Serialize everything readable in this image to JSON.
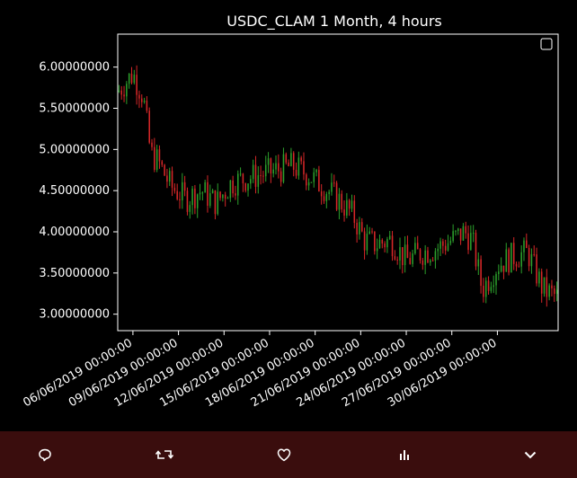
{
  "chart_data": {
    "type": "candlestick",
    "title": "USDC_CLAM  1 Month, 4 hours",
    "xlabel": "",
    "ylabel": "",
    "ylim": [
      2.8,
      6.4
    ],
    "x_range": [
      "2019-06-05 00:00",
      "2019-07-04 00:00"
    ],
    "yticks": [
      {
        "value": 3.0,
        "label": "3.00000000"
      },
      {
        "value": 3.5,
        "label": "3.50000000"
      },
      {
        "value": 4.0,
        "label": "4.00000000"
      },
      {
        "value": 4.5,
        "label": "4.50000000"
      },
      {
        "value": 5.0,
        "label": "5.00000000"
      },
      {
        "value": 5.5,
        "label": "5.50000000"
      },
      {
        "value": 6.0,
        "label": "6.00000000"
      }
    ],
    "xticks": [
      {
        "date": "2019-06-06",
        "label": "06/06/2019  00:00:00"
      },
      {
        "date": "2019-06-09",
        "label": "09/06/2019  00:00:00"
      },
      {
        "date": "2019-06-12",
        "label": "12/06/2019  00:00:00"
      },
      {
        "date": "2019-06-15",
        "label": "15/06/2019  00:00:00"
      },
      {
        "date": "2019-06-18",
        "label": "18/06/2019  00:00:00"
      },
      {
        "date": "2019-06-21",
        "label": "21/06/2019  00:00:00"
      },
      {
        "date": "2019-06-24",
        "label": "24/06/2019  00:00:00"
      },
      {
        "date": "2019-06-27",
        "label": "27/06/2019  00:00:00"
      },
      {
        "date": "2019-06-30",
        "label": "30/06/2019  00:00:00"
      }
    ],
    "colors": {
      "up": "#2ca02c",
      "down": "#d62728",
      "background": "#000000",
      "axes": "#ffffff"
    },
    "legend": {
      "placement": "top-right",
      "entries": []
    },
    "grid": false,
    "series": [
      {
        "close_keypoints": [
          [
            "2019-06-05 00:00",
            5.7
          ],
          [
            "2019-06-06 00:00",
            5.92
          ],
          [
            "2019-06-06 16:00",
            5.65
          ],
          [
            "2019-06-07 04:00",
            4.95
          ],
          [
            "2019-06-07 16:00",
            4.85
          ],
          [
            "2019-06-08 12:00",
            4.55
          ],
          [
            "2019-06-09 12:00",
            4.4
          ],
          [
            "2019-06-10 12:00",
            4.5
          ],
          [
            "2019-06-11 12:00",
            4.35
          ],
          [
            "2019-06-12 12:00",
            4.6
          ],
          [
            "2019-06-13 12:00",
            4.65
          ],
          [
            "2019-06-14 12:00",
            4.7
          ],
          [
            "2019-06-15 12:00",
            4.75
          ],
          [
            "2019-06-16 12:00",
            4.8
          ],
          [
            "2019-06-17 12:00",
            4.7
          ],
          [
            "2019-06-18 12:00",
            4.55
          ],
          [
            "2019-06-19 12:00",
            4.4
          ],
          [
            "2019-06-20 12:00",
            4.2
          ],
          [
            "2019-06-21 06:00",
            3.9
          ],
          [
            "2019-06-22 00:00",
            3.85
          ],
          [
            "2019-06-23 00:00",
            3.9
          ],
          [
            "2019-06-24 00:00",
            3.65
          ],
          [
            "2019-06-25 00:00",
            3.75
          ],
          [
            "2019-06-26 00:00",
            3.8
          ],
          [
            "2019-06-27 00:00",
            3.9
          ],
          [
            "2019-06-27 20:00",
            4.0
          ],
          [
            "2019-06-28 08:00",
            3.9
          ],
          [
            "2019-06-29 00:00",
            3.3
          ],
          [
            "2019-06-30 00:00",
            3.6
          ],
          [
            "2019-07-01 00:00",
            3.7
          ],
          [
            "2019-07-02 00:00",
            3.75
          ],
          [
            "2019-07-03 00:00",
            3.3
          ],
          [
            "2019-07-04 00:00",
            3.2
          ]
        ]
      }
    ]
  },
  "toolbar": {
    "buttons": [
      {
        "name": "comment-button",
        "icon": "comment-icon"
      },
      {
        "name": "retweet-button",
        "icon": "retweet-icon"
      },
      {
        "name": "like-button",
        "icon": "heart-icon"
      },
      {
        "name": "stats-button",
        "icon": "bar-chart-icon"
      },
      {
        "name": "more-button",
        "icon": "chevron-down-icon"
      }
    ],
    "icon_color": "#ffffff"
  }
}
